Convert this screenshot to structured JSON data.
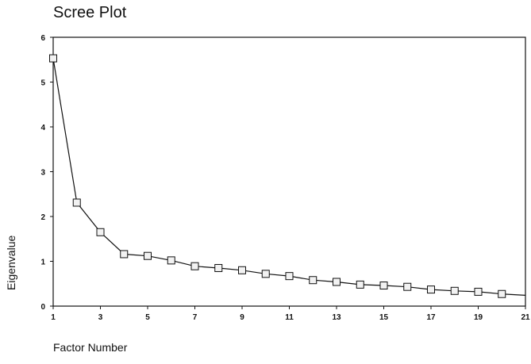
{
  "chart_data": {
    "type": "line",
    "title": "Scree Plot",
    "xlabel": "Factor Number",
    "ylabel": "Eigenvalue",
    "xlim": [
      1,
      21
    ],
    "ylim": [
      0,
      6
    ],
    "x_ticks": [
      "1",
      "3",
      "5",
      "7",
      "9",
      "11",
      "13",
      "15",
      "17",
      "19",
      "21"
    ],
    "y_ticks": [
      "0",
      "1",
      "2",
      "3",
      "4",
      "5",
      "6"
    ],
    "grid": false,
    "marker": "open-square",
    "x": [
      1,
      2,
      3,
      4,
      5,
      6,
      7,
      8,
      9,
      10,
      11,
      12,
      13,
      14,
      15,
      16,
      17,
      18,
      19,
      20,
      21
    ],
    "values": [
      5.53,
      2.31,
      1.65,
      1.16,
      1.12,
      1.02,
      0.89,
      0.85,
      0.8,
      0.72,
      0.67,
      0.58,
      0.54,
      0.48,
      0.46,
      0.43,
      0.37,
      0.34,
      0.32,
      0.27,
      0.24
    ],
    "colors": {
      "line": "#111111",
      "marker_fill": "#f2f2f2",
      "frame": "#111111"
    }
  }
}
